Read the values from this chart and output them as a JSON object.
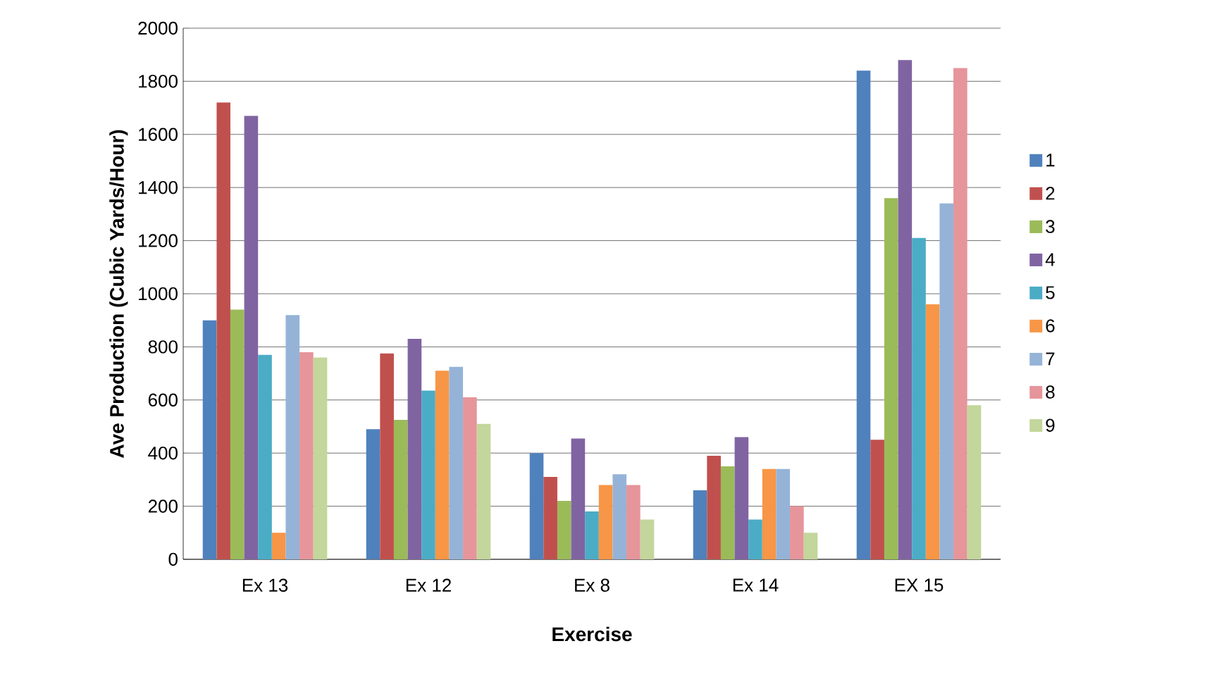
{
  "chart_data": {
    "type": "bar",
    "xlabel": "Exercise",
    "ylabel": "Ave Production (Cubic Yards/Hour)",
    "categories": [
      "Ex 13",
      "Ex 12",
      "Ex 8",
      "Ex 14",
      "EX 15"
    ],
    "series": [
      {
        "name": "1",
        "color": "#4f81bd",
        "values": [
          900,
          490,
          400,
          260,
          1840
        ]
      },
      {
        "name": "2",
        "color": "#c0504d",
        "values": [
          1720,
          775,
          310,
          390,
          450
        ]
      },
      {
        "name": "3",
        "color": "#9bbb59",
        "values": [
          940,
          525,
          220,
          350,
          1360
        ]
      },
      {
        "name": "4",
        "color": "#8064a2",
        "values": [
          1670,
          830,
          455,
          460,
          1880
        ]
      },
      {
        "name": "5",
        "color": "#4bacc6",
        "values": [
          770,
          635,
          180,
          150,
          1210
        ]
      },
      {
        "name": "6",
        "color": "#f79646",
        "values": [
          100,
          710,
          280,
          340,
          960
        ]
      },
      {
        "name": "7",
        "color": "#95b3d7",
        "values": [
          920,
          725,
          320,
          340,
          1340
        ]
      },
      {
        "name": "8",
        "color": "#e6959a",
        "values": [
          780,
          610,
          280,
          200,
          1850
        ]
      },
      {
        "name": "9",
        "color": "#c3d69b",
        "values": [
          760,
          510,
          150,
          100,
          580
        ]
      }
    ],
    "ylim": [
      0,
      2000
    ],
    "yticks": [
      0,
      200,
      400,
      600,
      800,
      1000,
      1200,
      1400,
      1600,
      1800,
      2000
    ],
    "grid": "y",
    "legend": "right"
  }
}
